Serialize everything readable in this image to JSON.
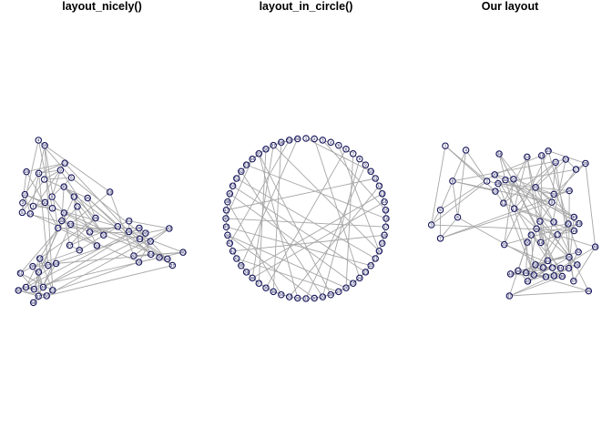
{
  "titles": {
    "nicely": "layout_nicely()",
    "circle": "layout_in_circle()",
    "ours": "Our layout"
  },
  "colors": {
    "edge": "#a6a6a6",
    "node_outline": "#14145a",
    "node_label": "#14145a",
    "node_fill": "#ffffff",
    "title": "#000000"
  },
  "graph": {
    "node_count": 60,
    "node_labels": [
      "1",
      "2",
      "3",
      "4",
      "5",
      "6",
      "7",
      "8",
      "9",
      "10",
      "11",
      "12",
      "13",
      "14",
      "15",
      "16",
      "17",
      "18",
      "19",
      "20",
      "21",
      "22",
      "23",
      "24",
      "25",
      "26",
      "27",
      "28",
      "29",
      "30",
      "31",
      "32",
      "33",
      "34",
      "35",
      "36",
      "37",
      "38",
      "39",
      "40",
      "41",
      "42",
      "43",
      "44",
      "45",
      "46",
      "47",
      "48",
      "49",
      "50",
      "51",
      "52",
      "53",
      "54",
      "55",
      "56",
      "57",
      "58",
      "59",
      "60"
    ],
    "edges": [
      [
        1,
        2
      ],
      [
        1,
        3
      ],
      [
        2,
        3
      ],
      [
        2,
        4
      ],
      [
        3,
        5
      ],
      [
        4,
        5
      ],
      [
        4,
        6
      ],
      [
        5,
        7
      ],
      [
        6,
        7
      ],
      [
        6,
        8
      ],
      [
        7,
        9
      ],
      [
        8,
        9
      ],
      [
        8,
        10
      ],
      [
        9,
        11
      ],
      [
        10,
        12
      ],
      [
        11,
        12
      ],
      [
        11,
        13
      ],
      [
        12,
        14
      ],
      [
        13,
        14
      ],
      [
        13,
        15
      ],
      [
        14,
        16
      ],
      [
        15,
        17
      ],
      [
        16,
        17
      ],
      [
        16,
        18
      ],
      [
        17,
        19
      ],
      [
        18,
        20
      ],
      [
        19,
        20
      ],
      [
        19,
        21
      ],
      [
        20,
        22
      ],
      [
        21,
        22
      ],
      [
        21,
        23
      ],
      [
        22,
        24
      ],
      [
        23,
        25
      ],
      [
        24,
        25
      ],
      [
        24,
        26
      ],
      [
        25,
        27
      ],
      [
        26,
        28
      ],
      [
        27,
        28
      ],
      [
        27,
        29
      ],
      [
        28,
        30
      ],
      [
        29,
        31
      ],
      [
        30,
        31
      ],
      [
        30,
        32
      ],
      [
        31,
        33
      ],
      [
        32,
        34
      ],
      [
        33,
        34
      ],
      [
        33,
        35
      ],
      [
        34,
        36
      ],
      [
        35,
        37
      ],
      [
        36,
        37
      ],
      [
        36,
        38
      ],
      [
        37,
        39
      ],
      [
        38,
        40
      ],
      [
        39,
        40
      ],
      [
        39,
        41
      ],
      [
        40,
        42
      ],
      [
        41,
        43
      ],
      [
        42,
        43
      ],
      [
        42,
        44
      ],
      [
        43,
        45
      ],
      [
        44,
        46
      ],
      [
        45,
        46
      ],
      [
        45,
        47
      ],
      [
        46,
        48
      ],
      [
        47,
        49
      ],
      [
        48,
        49
      ],
      [
        48,
        50
      ],
      [
        49,
        51
      ],
      [
        50,
        52
      ],
      [
        51,
        52
      ],
      [
        51,
        53
      ],
      [
        52,
        54
      ],
      [
        53,
        55
      ],
      [
        54,
        55
      ],
      [
        54,
        56
      ],
      [
        55,
        57
      ],
      [
        56,
        58
      ],
      [
        57,
        58
      ],
      [
        57,
        59
      ],
      [
        58,
        60
      ],
      [
        59,
        60
      ],
      [
        1,
        10
      ],
      [
        3,
        15
      ],
      [
        5,
        20
      ],
      [
        7,
        26
      ],
      [
        9,
        31
      ],
      [
        12,
        33
      ],
      [
        14,
        38
      ],
      [
        18,
        42
      ],
      [
        22,
        45
      ],
      [
        25,
        49
      ],
      [
        29,
        52
      ],
      [
        32,
        55
      ],
      [
        35,
        58
      ],
      [
        40,
        60
      ],
      [
        2,
        24
      ],
      [
        6,
        36
      ],
      [
        11,
        47
      ],
      [
        16,
        53
      ],
      [
        20,
        57
      ],
      [
        23,
        50
      ],
      [
        27,
        41
      ],
      [
        30,
        44
      ],
      [
        34,
        48
      ],
      [
        37,
        56
      ],
      [
        43,
        59
      ],
      [
        46,
        54
      ],
      [
        8,
        29
      ],
      [
        13,
        39
      ],
      [
        17,
        46
      ],
      [
        21,
        51
      ],
      [
        26,
        44
      ],
      [
        28,
        55
      ],
      [
        38,
        57
      ]
    ]
  }
}
